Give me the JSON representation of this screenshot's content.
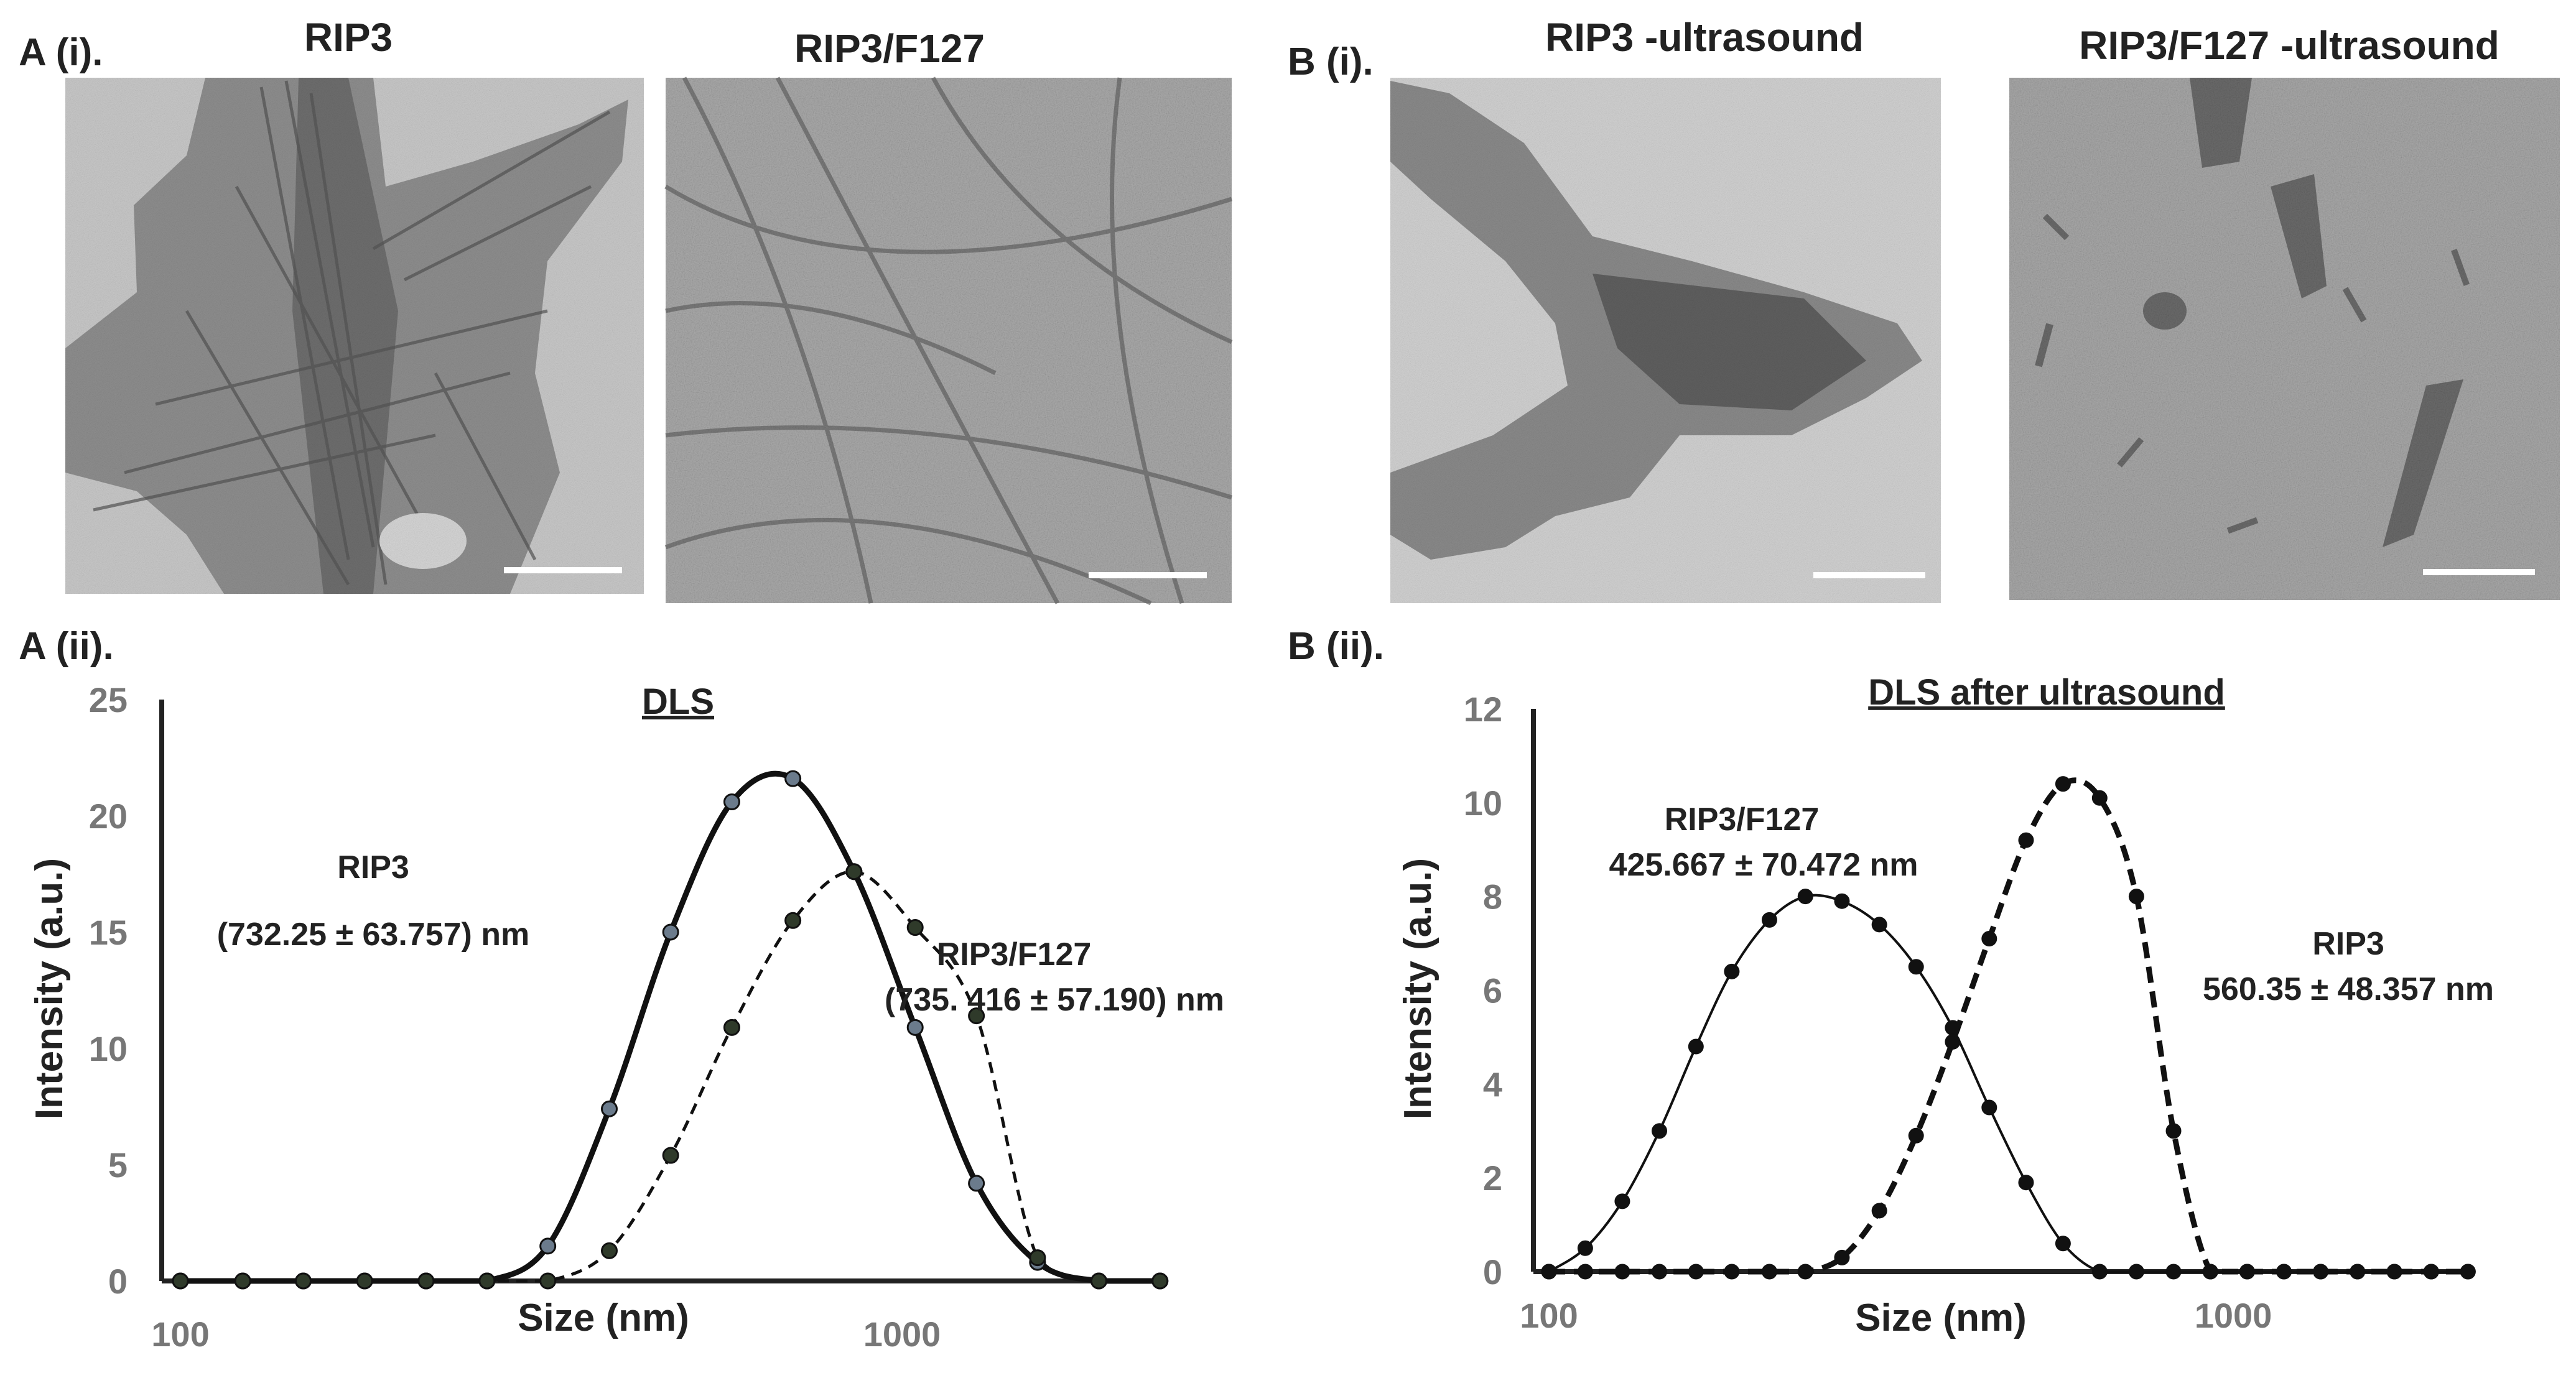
{
  "panels": {
    "a_i": {
      "label": "A (i).",
      "images": [
        "RIP3",
        "RIP3/F127"
      ]
    },
    "b_i": {
      "label": "B (i).",
      "images": [
        "RIP3 -ultrasound",
        "RIP3/F127 -ultrasound"
      ]
    },
    "a_ii": {
      "label": "A (ii)."
    },
    "b_ii": {
      "label": "B (ii)."
    }
  },
  "chart_data": [
    {
      "type": "line",
      "title": "DLS",
      "xlabel": "Size (nm)",
      "ylabel": "Intensity (a.u.)",
      "xscale": "log",
      "xticks": [
        "100",
        "1000"
      ],
      "yticks": [
        "0",
        "5",
        "10",
        "15",
        "20",
        "25"
      ],
      "ylim": [
        0,
        25
      ],
      "grid": false,
      "x": [
        100,
        122,
        148,
        180,
        219,
        266,
        323,
        393,
        478,
        581,
        706,
        858,
        1043,
        1268,
        1541,
        1874,
        2278
      ],
      "series": [
        {
          "name": "RIP3",
          "annotation": "(732.25 ± 63.757) nm",
          "style": "solid",
          "values": [
            0,
            0,
            0,
            0,
            0,
            0,
            1.5,
            7.4,
            15.0,
            20.6,
            21.6,
            17.6,
            10.9,
            4.2,
            0.8,
            0,
            0
          ]
        },
        {
          "name": "RIP3/F127",
          "annotation": "(735. 416 ± 57.190) nm",
          "style": "dashed",
          "values": [
            0,
            0,
            0,
            0,
            0,
            0,
            0,
            1.3,
            5.4,
            10.9,
            15.5,
            17.6,
            15.2,
            11.4,
            1.0,
            0,
            0
          ]
        }
      ]
    },
    {
      "type": "line",
      "title": "DLS after ultrasound",
      "xlabel": "Size (nm)",
      "ylabel": "Intensity (a.u.)",
      "xscale": "log",
      "xticks": [
        "100",
        "1000"
      ],
      "yticks": [
        "0",
        "2",
        "4",
        "6",
        "8",
        "10",
        "12"
      ],
      "ylim": [
        0,
        12
      ],
      "grid": false,
      "x": [
        100,
        113,
        128,
        145,
        164,
        185,
        210,
        237,
        268,
        304,
        344,
        389,
        440,
        498,
        564,
        638,
        722,
        818,
        926,
        1048,
        1186,
        1342,
        1519,
        1720,
        1947,
        2203
      ],
      "series": [
        {
          "name": "RIP3/F127",
          "annotation": "425.667  ± 70.472 nm",
          "style": "solid",
          "values": [
            0,
            0.5,
            1.5,
            3.0,
            4.8,
            6.4,
            7.5,
            8.0,
            7.9,
            7.4,
            6.5,
            5.2,
            3.5,
            1.9,
            0.6,
            0,
            0,
            0,
            0,
            0,
            0,
            0,
            0,
            0,
            0,
            0
          ]
        },
        {
          "name": "RIP3",
          "annotation": "560.35  ± 48.357 nm",
          "style": "dashed",
          "values": [
            0,
            0,
            0,
            0,
            0,
            0,
            0,
            0,
            0.3,
            1.3,
            2.9,
            4.9,
            7.1,
            9.2,
            10.4,
            10.1,
            8.0,
            3.0,
            0,
            0,
            0,
            0,
            0,
            0,
            0,
            0
          ]
        }
      ]
    }
  ]
}
